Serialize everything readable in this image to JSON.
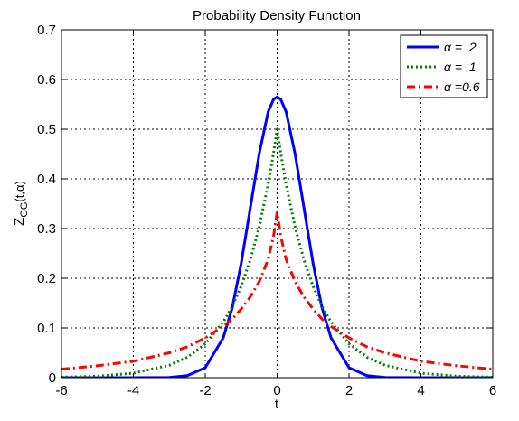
{
  "chart_data": {
    "type": "line",
    "title": "Probability Density Function",
    "xlabel": "t",
    "ylabel": {
      "main": "Z",
      "sub": "GG",
      "args": "(t,α)"
    },
    "xlim": [
      -6,
      6
    ],
    "ylim": [
      0,
      0.7
    ],
    "xticks": [
      "-6",
      "-4",
      "-2",
      "0",
      "2",
      "4",
      "6"
    ],
    "yticks": [
      "0",
      "0.1",
      "0.2",
      "0.3",
      "0.4",
      "0.5",
      "0.6",
      "0.7"
    ],
    "grid": true,
    "legend_position": "top-right",
    "x": [
      -6,
      -5,
      -4,
      -3,
      -2.5,
      -2,
      -1.5,
      -1.25,
      -1,
      -0.75,
      -0.5,
      -0.25,
      -0.1,
      0,
      0.1,
      0.25,
      0.5,
      0.75,
      1,
      1.25,
      1.5,
      2,
      2.5,
      3,
      4,
      5,
      6
    ],
    "series": [
      {
        "name": "α =  2",
        "color": "#0000ff",
        "dash": "solid",
        "values": [
          0,
          0,
          0,
          0.0005,
          0.004,
          0.02,
          0.08,
          0.14,
          0.23,
          0.34,
          0.45,
          0.535,
          0.56,
          0.565,
          0.56,
          0.535,
          0.45,
          0.34,
          0.23,
          0.14,
          0.08,
          0.02,
          0.004,
          0.0005,
          0,
          0,
          0
        ]
      },
      {
        "name": "α =  1",
        "color": "#008000",
        "dash": "dotted",
        "values": [
          0.001,
          0.003,
          0.009,
          0.025,
          0.041,
          0.068,
          0.112,
          0.143,
          0.184,
          0.236,
          0.303,
          0.389,
          0.452,
          0.5,
          0.452,
          0.389,
          0.303,
          0.236,
          0.184,
          0.143,
          0.112,
          0.068,
          0.041,
          0.025,
          0.009,
          0.003,
          0.001
        ]
      },
      {
        "name": "α =0.6",
        "color": "#ff0000",
        "dash": "dashdot",
        "values": [
          0.017,
          0.024,
          0.033,
          0.05,
          0.062,
          0.08,
          0.103,
          0.118,
          0.138,
          0.162,
          0.193,
          0.238,
          0.285,
          0.333,
          0.285,
          0.238,
          0.193,
          0.162,
          0.138,
          0.118,
          0.103,
          0.08,
          0.062,
          0.05,
          0.033,
          0.024,
          0.017
        ]
      }
    ]
  }
}
